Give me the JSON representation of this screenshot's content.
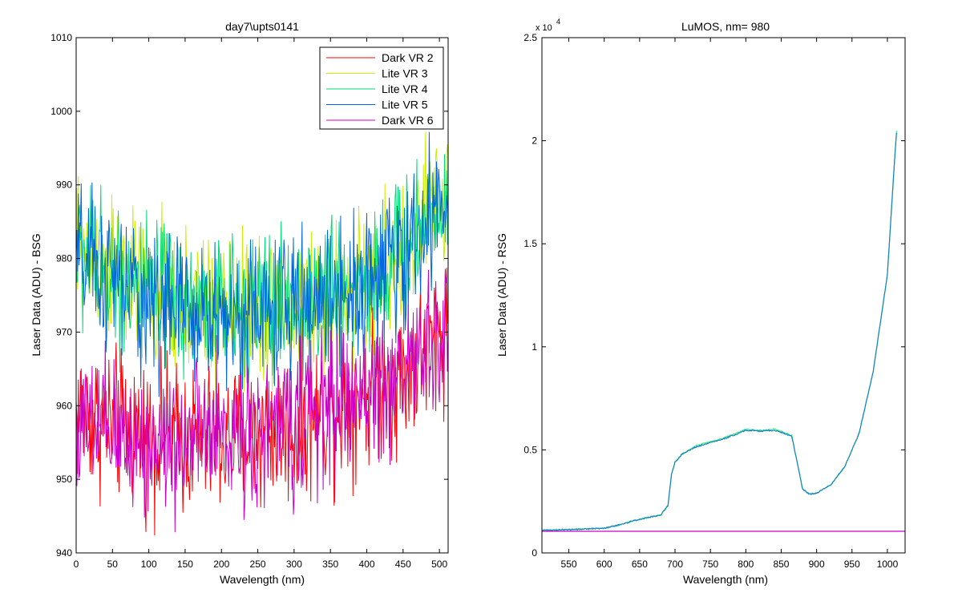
{
  "window": {
    "background": "#ffffff"
  },
  "chart_data": [
    {
      "type": "line",
      "title": "day7\\upts0141",
      "xlabel": "Wavelength (nm)",
      "ylabel": "Laser Data (ADU) - BSG",
      "xlim": [
        0,
        512
      ],
      "ylim": [
        940,
        1010
      ],
      "xticks": [
        "0",
        "50",
        "100",
        "150",
        "200",
        "250",
        "300",
        "350",
        "400",
        "450",
        "500"
      ],
      "yticks": [
        "940",
        "950",
        "960",
        "970",
        "980",
        "990",
        "1000",
        "1010"
      ],
      "grid": false,
      "legend_position": "top-right",
      "series": [
        {
          "name": "Dark VR 2",
          "color": "#ff0000",
          "approx_baseline": [
            [
              0,
              959
            ],
            [
              100,
              956
            ],
            [
              200,
              955
            ],
            [
              300,
              957
            ],
            [
              400,
              962
            ],
            [
              450,
              964
            ],
            [
              500,
              970
            ],
            [
              512,
              972
            ]
          ],
          "noise_amplitude": 5
        },
        {
          "name": "Lite VR 3",
          "color": "#ccee00",
          "approx_baseline": [
            [
              0,
              982
            ],
            [
              50,
              978
            ],
            [
              100,
              975
            ],
            [
              200,
              973
            ],
            [
              300,
              973
            ],
            [
              400,
              976
            ],
            [
              450,
              980
            ],
            [
              500,
              988
            ],
            [
              512,
              990
            ]
          ],
          "noise_amplitude": 5
        },
        {
          "name": "Lite VR 4",
          "color": "#00dd77",
          "approx_baseline": [
            [
              0,
              981
            ],
            [
              50,
              978
            ],
            [
              100,
              975
            ],
            [
              200,
              973
            ],
            [
              300,
              974
            ],
            [
              400,
              977
            ],
            [
              450,
              981
            ],
            [
              500,
              988
            ],
            [
              512,
              990
            ]
          ],
          "noise_amplitude": 5
        },
        {
          "name": "Lite VR 5",
          "color": "#0066dd",
          "approx_baseline": [
            [
              0,
              980
            ],
            [
              50,
              977
            ],
            [
              100,
              974
            ],
            [
              200,
              972
            ],
            [
              300,
              973
            ],
            [
              400,
              977
            ],
            [
              450,
              980
            ],
            [
              500,
              987
            ],
            [
              512,
              989
            ]
          ],
          "noise_amplitude": 5
        },
        {
          "name": "Dark VR 6",
          "color": "#cc00cc",
          "approx_baseline": [
            [
              0,
              957
            ],
            [
              100,
              955
            ],
            [
              200,
              956
            ],
            [
              300,
              958
            ],
            [
              400,
              962
            ],
            [
              450,
              965
            ],
            [
              500,
              969
            ],
            [
              512,
              970
            ]
          ],
          "noise_amplitude": 5
        }
      ]
    },
    {
      "type": "line",
      "title": "LuMOS, nm= 980",
      "xlabel": "Wavelength (nm)",
      "ylabel": "Laser Data (ADU) - RSG",
      "xlim": [
        512,
        1025
      ],
      "ylim": [
        0,
        25000
      ],
      "y_exponent_label": "x 10",
      "y_exponent_power": "4",
      "xticks": [
        "550",
        "600",
        "650",
        "700",
        "750",
        "800",
        "850",
        "900",
        "950",
        "1000"
      ],
      "yticks": [
        "0",
        "0.5",
        "1",
        "1.5",
        "2",
        "2.5"
      ],
      "grid": false,
      "series": [
        {
          "color": "#33ee77",
          "points": [
            [
              512,
              1100
            ],
            [
              550,
              1130
            ],
            [
              600,
              1200
            ],
            [
              620,
              1350
            ],
            [
              640,
              1550
            ],
            [
              660,
              1700
            ],
            [
              680,
              1850
            ],
            [
              690,
              2300
            ],
            [
              695,
              3800
            ],
            [
              700,
              4400
            ],
            [
              710,
              4800
            ],
            [
              730,
              5200
            ],
            [
              750,
              5400
            ],
            [
              770,
              5600
            ],
            [
              790,
              5850
            ],
            [
              800,
              6000
            ],
            [
              820,
              5950
            ],
            [
              840,
              6000
            ],
            [
              850,
              5900
            ],
            [
              865,
              5700
            ],
            [
              875,
              4000
            ],
            [
              880,
              3100
            ],
            [
              890,
              2850
            ],
            [
              900,
              2900
            ],
            [
              920,
              3300
            ],
            [
              940,
              4200
            ],
            [
              960,
              5800
            ],
            [
              980,
              8800
            ],
            [
              1000,
              13500
            ],
            [
              1010,
              19000
            ],
            [
              1013,
              20500
            ]
          ]
        },
        {
          "color": "#1a7fc9",
          "points": [
            [
              512,
              1100
            ],
            [
              550,
              1130
            ],
            [
              600,
              1200
            ],
            [
              620,
              1350
            ],
            [
              640,
              1550
            ],
            [
              660,
              1700
            ],
            [
              680,
              1850
            ],
            [
              690,
              2300
            ],
            [
              695,
              3800
            ],
            [
              700,
              4400
            ],
            [
              710,
              4800
            ],
            [
              730,
              5150
            ],
            [
              750,
              5350
            ],
            [
              770,
              5550
            ],
            [
              790,
              5800
            ],
            [
              800,
              5950
            ],
            [
              820,
              5900
            ],
            [
              840,
              5950
            ],
            [
              850,
              5850
            ],
            [
              865,
              5650
            ],
            [
              875,
              4000
            ],
            [
              880,
              3100
            ],
            [
              890,
              2850
            ],
            [
              900,
              2900
            ],
            [
              920,
              3300
            ],
            [
              940,
              4200
            ],
            [
              960,
              5800
            ],
            [
              980,
              8800
            ],
            [
              1000,
              13500
            ],
            [
              1010,
              19000
            ],
            [
              1013,
              20400
            ]
          ]
        },
        {
          "color": "#cc00cc",
          "points": [
            [
              512,
              1050
            ],
            [
              1025,
              1050
            ]
          ]
        }
      ]
    }
  ]
}
